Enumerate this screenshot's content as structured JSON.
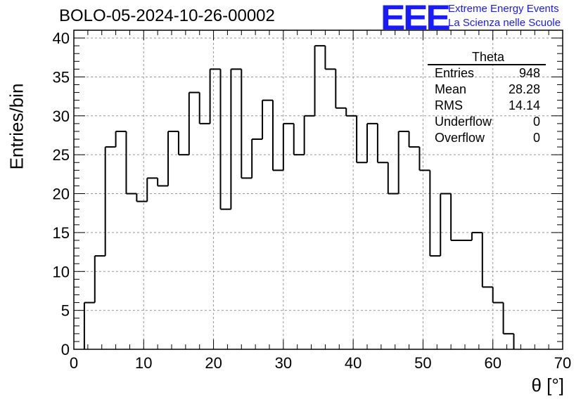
{
  "header": {
    "title": "BOLO-05-2024-10-26-00002",
    "logo": "EEE",
    "logo_line1": "Extreme Energy Events",
    "logo_line2": "La Scienza nelle Scuole"
  },
  "stats_box": {
    "name": "Theta",
    "rows": [
      {
        "label": "Entries",
        "value": "948"
      },
      {
        "label": "Mean",
        "value": "28.28"
      },
      {
        "label": "RMS",
        "value": "14.14"
      },
      {
        "label": "Underflow",
        "value": "0"
      },
      {
        "label": "Overflow",
        "value": "0"
      }
    ]
  },
  "chart_data": {
    "type": "bar",
    "style": "step histogram",
    "title": "BOLO-05-2024-10-26-00002",
    "xlabel": "θ [°]",
    "ylabel": "Entries/bin",
    "xlim": [
      0,
      70
    ],
    "ylim": [
      0,
      41
    ],
    "bin_width": 1.5,
    "x_start": 1.5,
    "values": [
      6,
      12,
      26,
      28,
      20,
      19,
      22,
      21,
      28,
      25,
      33,
      29,
      36,
      18,
      36,
      22,
      27,
      32,
      23,
      29,
      25,
      30,
      39,
      36,
      31,
      30,
      24,
      29,
      24,
      20,
      28,
      26,
      23,
      12,
      20,
      14,
      14,
      15,
      8,
      6,
      2
    ],
    "x_ticks": [
      0,
      10,
      20,
      30,
      40,
      50,
      60,
      70
    ],
    "y_ticks": [
      0,
      5,
      10,
      15,
      20,
      25,
      30,
      35,
      40
    ],
    "grid": true,
    "colors": {
      "line": "#000000",
      "grid": "#999999",
      "logo": "#1a1aff"
    }
  }
}
